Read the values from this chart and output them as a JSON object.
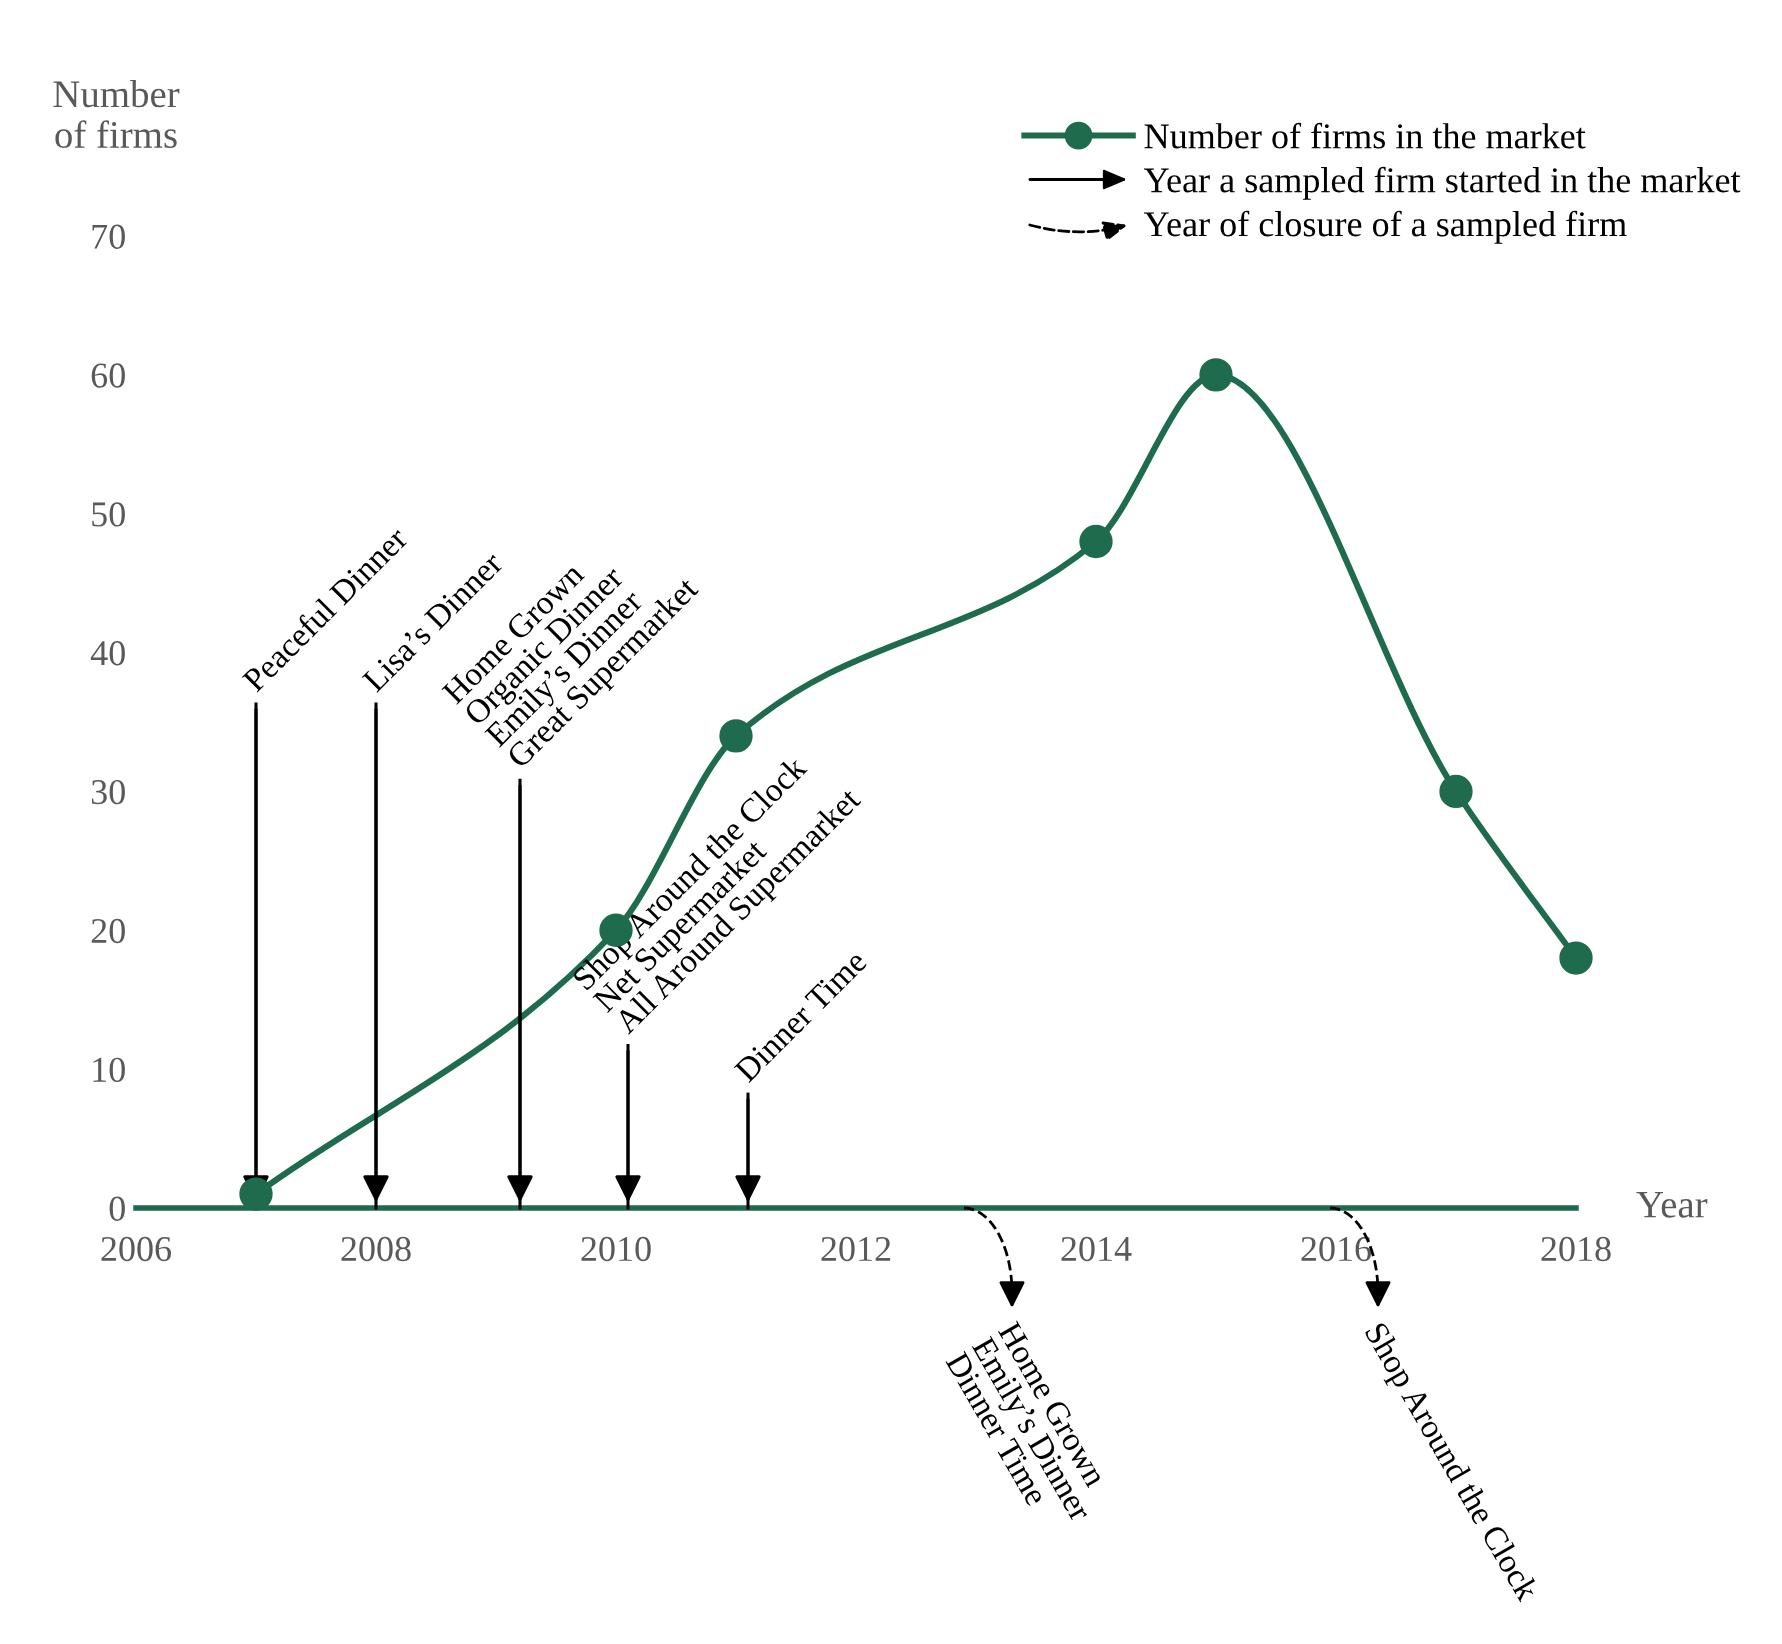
{
  "chart_data": {
    "type": "line",
    "xlabel": "Year",
    "ylabel": "Number\nof firms",
    "x": [
      2007,
      2010,
      2011,
      2014,
      2015,
      2017,
      2018
    ],
    "series": [
      {
        "name": "Number of firms in the market",
        "color": "#1e6b4e",
        "values": [
          1,
          20,
          34,
          48,
          60,
          30,
          18
        ]
      }
    ],
    "xlim": [
      2006,
      2018
    ],
    "ylim": [
      0,
      70
    ],
    "xticks": [
      2006,
      2008,
      2010,
      2012,
      2014,
      2016,
      2018
    ],
    "yticks": [
      0,
      10,
      20,
      30,
      40,
      50,
      60,
      70
    ],
    "marker": "circle",
    "line_style": "solid",
    "grid": false,
    "legend": "top right",
    "annotations": [
      "Year a sampled firm started in the market",
      "Year of closure of a sampled firm",
      "Home Grown\nEmily’s Dinner\nDinner Time",
      "Shop Around the Clock"
    ],
    "ref_lines": [
      {
        "axis": "x",
        "value": 2007,
        "label": "Peaceful Dinner",
        "line_style": "solid"
      },
      {
        "axis": "x",
        "value": 2008,
        "label": "Lisa’s Dinner",
        "line_style": "solid"
      },
      {
        "axis": "x",
        "value": 2009.2,
        "label": "Home Grown\nOrganic Dinner\nEmily’s Dinner\nGreat Supermarket",
        "line_style": "solid"
      },
      {
        "axis": "x",
        "value": 2010.1,
        "label": "Shop Around the Clock\nNet Supermarket\nAll Around Supermarket",
        "line_style": "solid"
      },
      {
        "axis": "x",
        "value": 2011.1,
        "label": "Dinner Time",
        "line_style": "solid"
      }
    ]
  }
}
